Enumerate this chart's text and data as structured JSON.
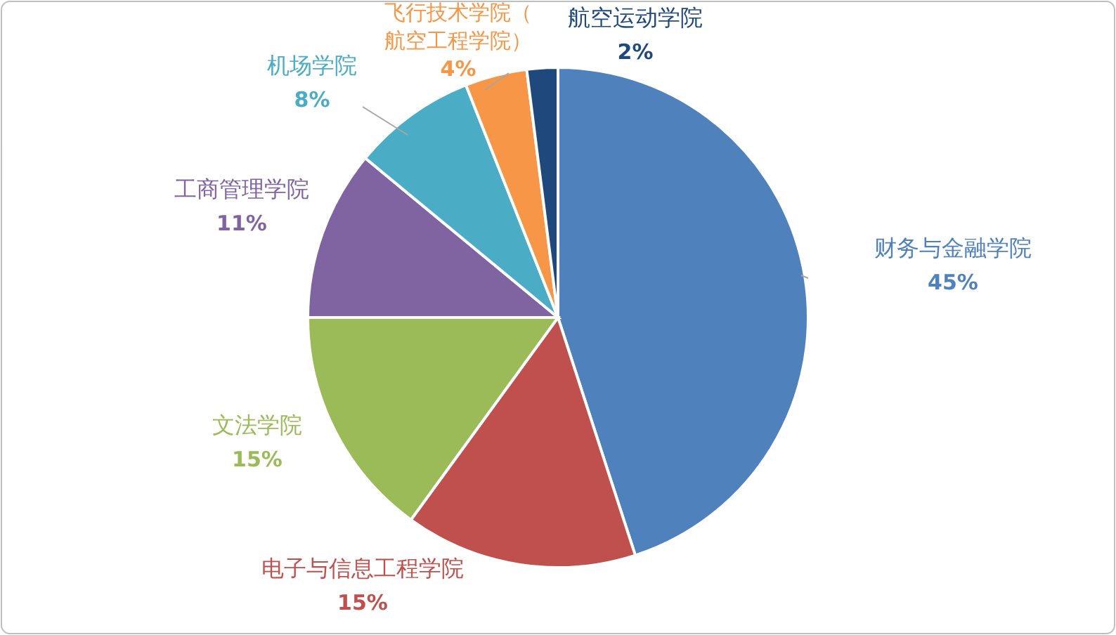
{
  "chart_data": {
    "type": "pie",
    "categories": [
      "财务与金融学院",
      "电子与信息工程学院",
      "文法学院",
      "工商管理学院",
      "机场学院",
      "飞行技术学院（航空工程学院）",
      "航空运动学院"
    ],
    "values": [
      45,
      15,
      15,
      11,
      8,
      4,
      2
    ],
    "colors": [
      "#4f81bd",
      "#c0504d",
      "#9bbb59",
      "#8064a2",
      "#4bacc6",
      "#f79646",
      "#1f497d"
    ],
    "value_labels": [
      "45%",
      "15%",
      "15%",
      "11%",
      "8%",
      "4%",
      "2%"
    ],
    "legend": false
  }
}
